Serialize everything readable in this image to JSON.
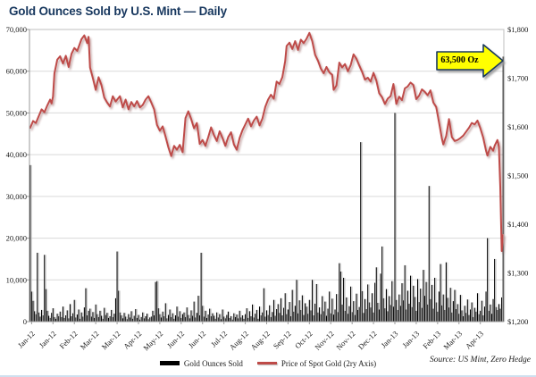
{
  "page": {
    "title": "Gold Ounces Sold by U.S. Mint — Daily",
    "source": "Source: US Mint, Zero Hedge"
  },
  "annotation": {
    "label": "63,500 Oz",
    "points_at_value": 63500
  },
  "legend": [
    {
      "label": "Gold Ounces Sold",
      "color": "#000000",
      "type": "bar"
    },
    {
      "label": "Price of Spot Gold (2ry Axis)",
      "color": "#BE4B48",
      "type": "line"
    }
  ],
  "colors": {
    "title": "#17375E",
    "bar": "#000000",
    "line": "#BE4B48",
    "grid": "#D9D9D9",
    "plot_border": "#BFBFBF",
    "axis": "#9A9A9A",
    "annotation_fill": "#FFFF00",
    "annotation_border": "#17375E",
    "text": "#1A1A1A"
  },
  "chart_data": {
    "type": "bar+line",
    "title": "Gold Ounces Sold by U.S. Mint — Daily",
    "grid": "horizontal-only",
    "legend_position": "bottom-center",
    "left_axis": {
      "series": "Gold Ounces Sold",
      "range": [
        0,
        70000
      ],
      "ticks": [
        {
          "value": 70000,
          "label": "70,000"
        },
        {
          "value": 60000,
          "label": "60,000"
        },
        {
          "value": 50000,
          "label": "50,000"
        },
        {
          "value": 40000,
          "label": "40,000"
        },
        {
          "value": 30000,
          "label": "30,000"
        },
        {
          "value": 20000,
          "label": "20,000"
        },
        {
          "value": 10000,
          "label": "10,000"
        },
        {
          "value": 0,
          "label": "0"
        }
      ]
    },
    "right_axis": {
      "series": "Price of Spot Gold (2ry Axis)",
      "range": [
        1200,
        1800
      ],
      "ticks": [
        {
          "value": 1800,
          "label": "$1,800"
        },
        {
          "value": 1700,
          "label": "$1,700"
        },
        {
          "value": 1600,
          "label": "$1,600"
        },
        {
          "value": 1500,
          "label": "$1,500"
        },
        {
          "value": 1400,
          "label": "$1,400"
        },
        {
          "value": 1300,
          "label": "$1,300"
        },
        {
          "value": 1200,
          "label": "$1,200"
        }
      ]
    },
    "x_axis": {
      "tick_start_index": 1,
      "tick_every": 15,
      "labels": [
        "Jan-12",
        "Jan-12",
        "Feb-12",
        "Mar-12",
        "Mar-12",
        "Apr-12",
        "May-12",
        "Jun-12",
        "Jun-12",
        "Jul-12",
        "Aug-12",
        "Aug-12",
        "Sep-12",
        "Oct-12",
        "Nov-12",
        "Nov-12",
        "Dec-12",
        "Jan-13",
        "Jan-13",
        "Feb-13",
        "Mar-13",
        "Apr-13"
      ]
    },
    "bars": [
      37500,
      7200,
      5000,
      2500,
      1800,
      16500,
      2200,
      1200,
      2800,
      1500,
      16000,
      7800,
      2600,
      1400,
      900,
      2100,
      3200,
      1100,
      700,
      1900,
      1300,
      2400,
      1100,
      3600,
      900,
      1500,
      2700,
      800,
      4200,
      1300,
      2000,
      5200,
      1000,
      1700,
      2900,
      700,
      2200,
      1200,
      3400,
      8000,
      1500,
      2600,
      3100,
      1200,
      2300,
      900,
      4100,
      1800,
      1100,
      2600,
      1400,
      700,
      3300,
      1600,
      2100,
      900,
      1300,
      2800,
      1100,
      1900,
      5600,
      16800,
      7400,
      2200,
      1500,
      800,
      2100,
      1200,
      600,
      1800,
      1000,
      2500,
      700,
      1400,
      3000,
      900,
      1600,
      500,
      1100,
      2200,
      800,
      1300,
      1900,
      600,
      1000,
      1200,
      2600,
      1500,
      9500,
      9700,
      3200,
      1800,
      1000,
      2400,
      1300,
      4400,
      800,
      1600,
      2900,
      1100,
      2000,
      700,
      1500,
      3600,
      1200,
      2500,
      900,
      1800,
      2200,
      1100,
      3400,
      1600,
      800,
      2700,
      1400,
      4800,
      1000,
      2100,
      6200,
      1500,
      16500,
      3800,
      1200,
      2600,
      900,
      1700,
      3100,
      1300,
      2000,
      1400,
      700,
      2200,
      1000,
      1800,
      600,
      2900,
      1200,
      800,
      1600,
      2400,
      900,
      1300,
      500,
      2000,
      1100,
      1700,
      800,
      2600,
      1000,
      1500,
      700,
      1800,
      3200,
      900,
      2500,
      1300,
      4100,
      1000,
      1900,
      2800,
      700,
      3600,
      1500,
      2200,
      8000,
      1200,
      2700,
      1600,
      3900,
      1100,
      2300,
      5200,
      1400,
      3000,
      4200,
      2100,
      5600,
      1500,
      3300,
      6800,
      1800,
      2900,
      4700,
      1300,
      7600,
      2400,
      3800,
      10000,
      2000,
      5100,
      2800,
      6300,
      1600,
      4400,
      3600,
      1900,
      5200,
      2700,
      10000,
      1500,
      4300,
      9000,
      2200,
      3400,
      1800,
      6100,
      2500,
      4800,
      1400,
      3100,
      7200,
      2000,
      5500,
      1700,
      2900,
      6600,
      2300,
      14000,
      12000,
      4100,
      10500,
      2600,
      5800,
      1900,
      3700,
      8400,
      2300,
      4900,
      1600,
      6700,
      2800,
      3500,
      43000,
      7300,
      2100,
      5400,
      3000,
      8900,
      4600,
      3400,
      6800,
      2200,
      9300,
      13000,
      4500,
      2900,
      11500,
      18000,
      5600,
      3200,
      7800,
      2500,
      6100,
      4000,
      9700,
      3600,
      50000,
      5200,
      2800,
      6500,
      3800,
      9200,
      5100,
      13500,
      2900,
      7400,
      4300,
      11000,
      3500,
      8600,
      5900,
      2600,
      10200,
      4700,
      7900,
      3300,
      12400,
      6200,
      9500,
      4100,
      32500,
      5400,
      8800,
      3100,
      10500,
      4600,
      2400,
      7200,
      13800,
      3900,
      6500,
      2800,
      14200,
      5700,
      3400,
      8100,
      2200,
      4900,
      7600,
      3000,
      4200,
      1900,
      6400,
      2700,
      1300,
      3800,
      2100,
      5300,
      1600,
      2900,
      4600,
      1100,
      3300,
      2400,
      6800,
      1800,
      2600,
      5000,
      1500,
      3600,
      7200,
      20000,
      2600,
      4100,
      1900,
      5400,
      15000,
      3500,
      2800,
      4200,
      3100,
      5800,
      63500
    ],
    "price_points": [
      [
        0,
        1598
      ],
      [
        2,
        1612
      ],
      [
        4,
        1608
      ],
      [
        6,
        1622
      ],
      [
        8,
        1636
      ],
      [
        10,
        1630
      ],
      [
        12,
        1644
      ],
      [
        14,
        1656
      ],
      [
        15,
        1648
      ],
      [
        16,
        1662
      ],
      [
        17,
        1710
      ],
      [
        19,
        1738
      ],
      [
        21,
        1745
      ],
      [
        23,
        1730
      ],
      [
        25,
        1746
      ],
      [
        27,
        1723
      ],
      [
        29,
        1750
      ],
      [
        31,
        1762
      ],
      [
        33,
        1756
      ],
      [
        36,
        1780
      ],
      [
        38,
        1788
      ],
      [
        40,
        1772
      ],
      [
        41,
        1785
      ],
      [
        42,
        1722
      ],
      [
        44,
        1700
      ],
      [
        46,
        1676
      ],
      [
        48,
        1702
      ],
      [
        50,
        1686
      ],
      [
        52,
        1660
      ],
      [
        54,
        1650
      ],
      [
        56,
        1642
      ],
      [
        58,
        1663
      ],
      [
        60,
        1652
      ],
      [
        63,
        1663
      ],
      [
        65,
        1640
      ],
      [
        67,
        1656
      ],
      [
        69,
        1636
      ],
      [
        71,
        1651
      ],
      [
        73,
        1642
      ],
      [
        75,
        1653
      ],
      [
        77,
        1640
      ],
      [
        79,
        1645
      ],
      [
        81,
        1656
      ],
      [
        83,
        1663
      ],
      [
        85,
        1650
      ],
      [
        87,
        1636
      ],
      [
        89,
        1604
      ],
      [
        91,
        1592
      ],
      [
        93,
        1601
      ],
      [
        95,
        1580
      ],
      [
        97,
        1558
      ],
      [
        99,
        1540
      ],
      [
        101,
        1561
      ],
      [
        103,
        1553
      ],
      [
        105,
        1563
      ],
      [
        107,
        1548
      ],
      [
        109,
        1618
      ],
      [
        111,
        1632
      ],
      [
        113,
        1616
      ],
      [
        115,
        1597
      ],
      [
        117,
        1608
      ],
      [
        119,
        1565
      ],
      [
        121,
        1573
      ],
      [
        123,
        1561
      ],
      [
        125,
        1579
      ],
      [
        127,
        1599
      ],
      [
        129,
        1583
      ],
      [
        131,
        1571
      ],
      [
        133,
        1591
      ],
      [
        135,
        1577
      ],
      [
        137,
        1561
      ],
      [
        139,
        1579
      ],
      [
        141,
        1589
      ],
      [
        143,
        1564
      ],
      [
        145,
        1553
      ],
      [
        147,
        1577
      ],
      [
        149,
        1593
      ],
      [
        151,
        1605
      ],
      [
        153,
        1617
      ],
      [
        155,
        1601
      ],
      [
        157,
        1613
      ],
      [
        159,
        1621
      ],
      [
        161,
        1603
      ],
      [
        163,
        1617
      ],
      [
        165,
        1641
      ],
      [
        167,
        1656
      ],
      [
        169,
        1666
      ],
      [
        171,
        1658
      ],
      [
        173,
        1693
      ],
      [
        175,
        1688
      ],
      [
        177,
        1702
      ],
      [
        179,
        1735
      ],
      [
        180,
        1766
      ],
      [
        182,
        1773
      ],
      [
        184,
        1760
      ],
      [
        186,
        1776
      ],
      [
        188,
        1758
      ],
      [
        190,
        1779
      ],
      [
        192,
        1772
      ],
      [
        194,
        1781
      ],
      [
        196,
        1793
      ],
      [
        198,
        1776
      ],
      [
        200,
        1748
      ],
      [
        202,
        1736
      ],
      [
        204,
        1720
      ],
      [
        206,
        1710
      ],
      [
        208,
        1723
      ],
      [
        210,
        1712
      ],
      [
        212,
        1707
      ],
      [
        213,
        1676
      ],
      [
        215,
        1685
      ],
      [
        217,
        1732
      ],
      [
        219,
        1722
      ],
      [
        221,
        1729
      ],
      [
        223,
        1714
      ],
      [
        225,
        1727
      ],
      [
        227,
        1749
      ],
      [
        229,
        1740
      ],
      [
        231,
        1726
      ],
      [
        233,
        1713
      ],
      [
        235,
        1697
      ],
      [
        237,
        1701
      ],
      [
        239,
        1693
      ],
      [
        241,
        1711
      ],
      [
        243,
        1695
      ],
      [
        245,
        1669
      ],
      [
        247,
        1661
      ],
      [
        249,
        1647
      ],
      [
        251,
        1658
      ],
      [
        253,
        1663
      ],
      [
        255,
        1688
      ],
      [
        257,
        1647
      ],
      [
        259,
        1662
      ],
      [
        261,
        1655
      ],
      [
        263,
        1679
      ],
      [
        265,
        1683
      ],
      [
        267,
        1691
      ],
      [
        269,
        1686
      ],
      [
        271,
        1657
      ],
      [
        273,
        1664
      ],
      [
        275,
        1677
      ],
      [
        277,
        1672
      ],
      [
        279,
        1665
      ],
      [
        281,
        1675
      ],
      [
        283,
        1650
      ],
      [
        285,
        1641
      ],
      [
        287,
        1609
      ],
      [
        289,
        1576
      ],
      [
        290,
        1564
      ],
      [
        292,
        1581
      ],
      [
        294,
        1616
      ],
      [
        296,
        1579
      ],
      [
        298,
        1571
      ],
      [
        300,
        1573
      ],
      [
        302,
        1577
      ],
      [
        304,
        1582
      ],
      [
        306,
        1590
      ],
      [
        308,
        1598
      ],
      [
        310,
        1608
      ],
      [
        312,
        1605
      ],
      [
        314,
        1613
      ],
      [
        316,
        1597
      ],
      [
        318,
        1578
      ],
      [
        320,
        1551
      ],
      [
        321,
        1541
      ],
      [
        323,
        1559
      ],
      [
        325,
        1551
      ],
      [
        326,
        1561
      ],
      [
        328,
        1573
      ],
      [
        329,
        1560
      ],
      [
        330,
        1477
      ],
      [
        331,
        1345
      ],
      [
        332,
        1378
      ]
    ]
  }
}
